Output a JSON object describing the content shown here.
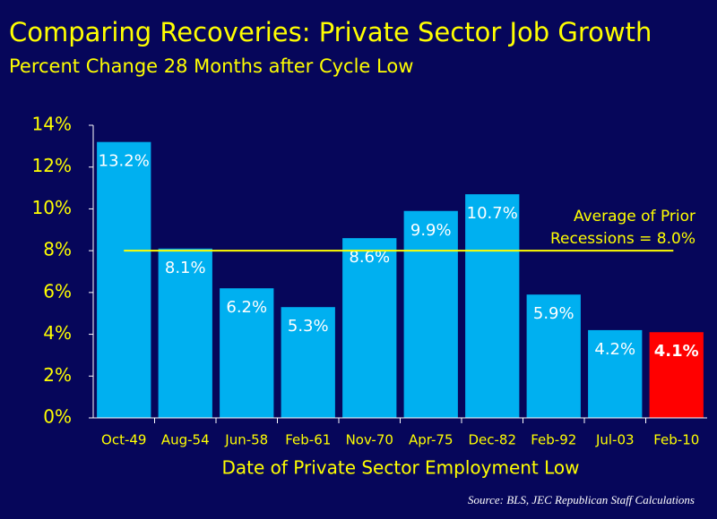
{
  "chart_data": {
    "type": "bar",
    "title": "Comparing Recoveries:  Private Sector Job Growth",
    "subtitle": "Percent Change 28 Months after Cycle Low",
    "x_label": "Date of Private Sector Employment Low",
    "source": "Source:  BLS, JEC Republican Staff Calculations",
    "categories": [
      "Oct-49",
      "Aug-54",
      "Jun-58",
      "Feb-61",
      "Nov-70",
      "Apr-75",
      "Dec-82",
      "Feb-92",
      "Jul-03",
      "Feb-10"
    ],
    "values": [
      13.2,
      8.1,
      6.2,
      5.3,
      8.6,
      9.9,
      10.7,
      5.9,
      4.2,
      4.1
    ],
    "value_labels": [
      "13.2%",
      "8.1%",
      "6.2%",
      "5.3%",
      "8.6%",
      "9.9%",
      "10.7%",
      "5.9%",
      "4.2%",
      "4.1%"
    ],
    "colors": [
      "#00b0f0",
      "#00b0f0",
      "#00b0f0",
      "#00b0f0",
      "#00b0f0",
      "#00b0f0",
      "#00b0f0",
      "#00b0f0",
      "#00b0f0",
      "#ff0000"
    ],
    "ylim": [
      0,
      14
    ],
    "yticks": [
      {
        "value": 0,
        "label": "0%"
      },
      {
        "value": 2,
        "label": "2%"
      },
      {
        "value": 4,
        "label": "4%"
      },
      {
        "value": 6,
        "label": "6%"
      },
      {
        "value": 8,
        "label": "8%"
      },
      {
        "value": 10,
        "label": "10%"
      },
      {
        "value": 12,
        "label": "12%"
      },
      {
        "value": 14,
        "label": "14%"
      }
    ],
    "reference_line": {
      "value": 8.0,
      "color": "#ffff00",
      "label": [
        "Average of Prior",
        "Recessions = 8.0%"
      ]
    }
  }
}
